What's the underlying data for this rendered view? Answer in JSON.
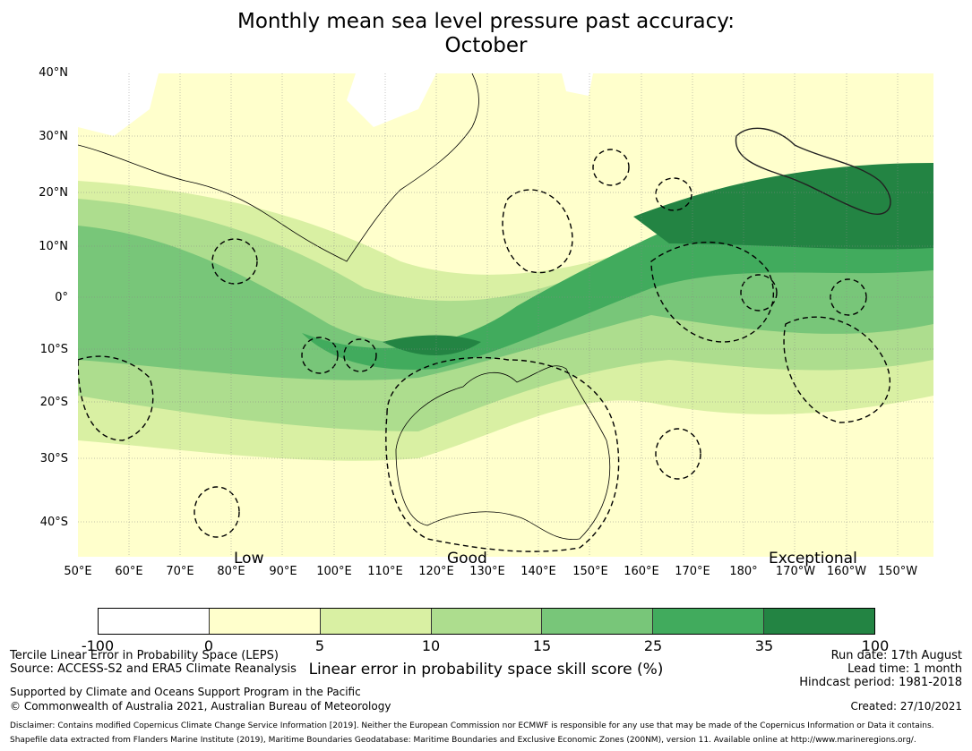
{
  "title": {
    "line1": "Monthly mean sea level pressure past accuracy:",
    "line2": "October"
  },
  "map": {
    "lat_labels": [
      "40°N",
      "30°N",
      "20°N",
      "10°N",
      "0°",
      "10°S",
      "20°S",
      "30°S",
      "40°S"
    ],
    "lon_labels": [
      "50°E",
      "60°E",
      "70°E",
      "80°E",
      "90°E",
      "100°E",
      "110°E",
      "120°E",
      "130°E",
      "140°E",
      "150°E",
      "160°E",
      "170°E",
      "180°",
      "170°W",
      "160°W",
      "150°W"
    ],
    "zone_labels": {
      "low": "Low",
      "good": "Good",
      "exceptional": "Exceptional"
    }
  },
  "colorbar": {
    "ticks": [
      "-100",
      "0",
      "5",
      "10",
      "15",
      "25",
      "35",
      "100"
    ],
    "colors": [
      "#ffffff",
      "#ffffcc",
      "#d9f0a3",
      "#addd8e",
      "#78c679",
      "#41ab5d",
      "#238443"
    ],
    "label": "Linear error in probability space skill score (%)"
  },
  "footer": {
    "method": "Tercile Linear Error in Probability Space (LEPS)",
    "source": "Source: ACCESS-S2 and ERA5 Climate Reanalysis",
    "support": "Supported by Climate and Oceans Support Program in the Pacific",
    "copyright": "© Commonwealth of Australia 2021, Australian Bureau of Meteorology",
    "run_date": "Run date: 17th August",
    "lead_time": "Lead time: 1 month",
    "hindcast": "Hindcast period: 1981-2018",
    "created": "Created: 27/10/2021",
    "disclaimer": "Disclaimer: Contains modified Copernicus Climate Change Service Information [2019]. Neither the European Commission nor ECMWF is responsible for any use that may be made of the Copernicus Information or Data it contains.",
    "shapefile": "Shapefile data extracted from Flanders Marine Institute (2019), Maritime Boundaries Geodatabase: Maritime Boundaries and Exclusive Economic Zones (200NM), version 11. Available online at http://www.marineregions.org/."
  }
}
